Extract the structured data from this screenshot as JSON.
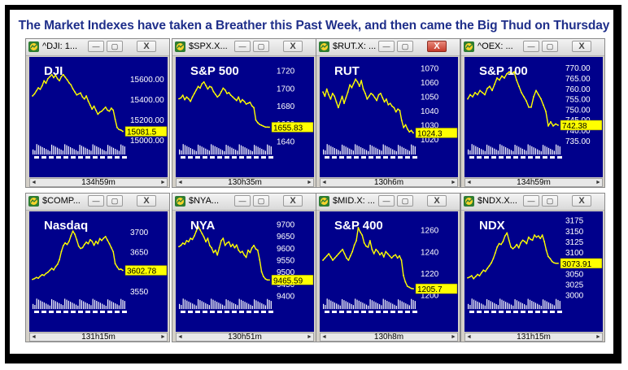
{
  "headline": "The Market Indexes have taken a Breather this Past Week, and then came the Big Thud on Thursday",
  "colors": {
    "headline": "#1f2f8a",
    "plot_bg": "#00008b",
    "price_line": "#ffff00",
    "label_box": "#ffff00",
    "axis_text": "#ffffff"
  },
  "window_buttons": {
    "minimize": "—",
    "restore": "▢",
    "close": "X"
  },
  "icons": {
    "app": "stock-chart-app-icon",
    "scroll_left": "left-arrow-icon",
    "scroll_right": "right-arrow-icon"
  },
  "windows": [
    {
      "title": "^DJI: 1...",
      "label": "DJI",
      "interval": "134h59m",
      "last_price": "15081.5",
      "close_active": false,
      "chart_data": {
        "type": "line",
        "ylim": [
          14950,
          15750
        ],
        "yticks": [
          "15600.00",
          "15400.00",
          "15200.00",
          "15000.00"
        ],
        "ytick_values": [
          15600,
          15400,
          15200,
          15000
        ],
        "values": [
          15430,
          15450,
          15480,
          15510,
          15495,
          15530,
          15580,
          15555,
          15600,
          15620,
          15640,
          15610,
          15635,
          15600,
          15580,
          15620,
          15640,
          15615,
          15590,
          15560,
          15540,
          15500,
          15470,
          15440,
          15450,
          15460,
          15420,
          15400,
          15430,
          15380,
          15340,
          15300,
          15330,
          15290,
          15250,
          15270,
          15280,
          15300,
          15320,
          15290,
          15280,
          15310,
          15290,
          15200,
          15120,
          15100,
          15095,
          15081.5
        ]
      }
    },
    {
      "title": "$SPX.X...",
      "label": "S&P 500",
      "interval": "130h35m",
      "last_price": "1655.83",
      "close_active": false,
      "chart_data": {
        "type": "line",
        "ylim": [
          1636,
          1728
        ],
        "yticks": [
          "1720",
          "1700",
          "1680",
          "1660",
          "1640"
        ],
        "ytick_values": [
          1720,
          1700,
          1680,
          1660,
          1640
        ],
        "values": [
          1688,
          1689,
          1692,
          1687,
          1690,
          1688,
          1685,
          1690,
          1694,
          1698,
          1702,
          1700,
          1705,
          1707,
          1703,
          1699,
          1702,
          1701,
          1696,
          1693,
          1690,
          1692,
          1696,
          1700,
          1698,
          1694,
          1695,
          1692,
          1690,
          1688,
          1686,
          1690,
          1684,
          1687,
          1685,
          1682,
          1683,
          1684,
          1680,
          1678,
          1664,
          1661,
          1659,
          1658,
          1657,
          1656,
          1656,
          1655.83
        ]
      }
    },
    {
      "title": "$RUT.X: ...",
      "label": "RUT",
      "interval": "130h6m",
      "last_price": "1024.3",
      "close_active": true,
      "chart_data": {
        "type": "line",
        "ylim": [
          1016,
          1073
        ],
        "yticks": [
          "1070",
          "1060",
          "1050",
          "1040",
          "1030",
          "1020"
        ],
        "ytick_values": [
          1070,
          1060,
          1050,
          1040,
          1030,
          1020
        ],
        "values": [
          1053,
          1050,
          1055,
          1051,
          1048,
          1052,
          1050,
          1046,
          1042,
          1046,
          1050,
          1045,
          1049,
          1053,
          1058,
          1056,
          1059,
          1062,
          1060,
          1057,
          1061,
          1055,
          1052,
          1048,
          1050,
          1052,
          1051,
          1049,
          1047,
          1051,
          1052,
          1049,
          1046,
          1048,
          1044,
          1045,
          1043,
          1042,
          1039,
          1041,
          1040,
          1033,
          1028,
          1030,
          1027,
          1025,
          1026,
          1024.3
        ]
      }
    },
    {
      "title": "^OEX: ...",
      "label": "S&P 100",
      "interval": "134h59m",
      "last_price": "742.38",
      "close_active": false,
      "chart_data": {
        "type": "line",
        "ylim": [
          733,
          772
        ],
        "yticks": [
          "770.00",
          "765.00",
          "760.00",
          "755.00",
          "750.00",
          "745.00",
          "740.00",
          "735.00"
        ],
        "ytick_values": [
          770,
          765,
          760,
          755,
          750,
          745,
          740,
          735
        ],
        "values": [
          755,
          757,
          756,
          758,
          757,
          759,
          758,
          757,
          760,
          761,
          759,
          762,
          765,
          764,
          766,
          765,
          767,
          768,
          767,
          768,
          764,
          761,
          758,
          756,
          754,
          751,
          751,
          756,
          759,
          757,
          755,
          752,
          749,
          742,
          744,
          742,
          743,
          742.38
        ]
      }
    },
    {
      "title": "$COMP...",
      "label": "Nasdaq",
      "interval": "131h15m",
      "last_price": "3602.78",
      "close_active": false,
      "chart_data": {
        "type": "line",
        "ylim": [
          3530,
          3735
        ],
        "yticks": [
          "3700",
          "3650",
          "3600",
          "3550"
        ],
        "ytick_values": [
          3700,
          3650,
          3600,
          3550
        ],
        "values": [
          3580,
          3582,
          3585,
          3583,
          3588,
          3592,
          3590,
          3595,
          3598,
          3603,
          3608,
          3604,
          3612,
          3618,
          3630,
          3650,
          3665,
          3672,
          3668,
          3676,
          3690,
          3702,
          3694,
          3680,
          3664,
          3658,
          3660,
          3668,
          3674,
          3670,
          3680,
          3676,
          3666,
          3676,
          3670,
          3683,
          3678,
          3684,
          3688,
          3679,
          3670,
          3660,
          3650,
          3620,
          3612,
          3605,
          3606,
          3602.78
        ]
      }
    },
    {
      "title": "$NYA...",
      "label": "NYA",
      "interval": "130h51m",
      "last_price": "9465.59",
      "close_active": false,
      "chart_data": {
        "type": "line",
        "ylim": [
          9385,
          9725
        ],
        "yticks": [
          "9700",
          "9650",
          "9600",
          "9550",
          "9500",
          "9450",
          "9400"
        ],
        "ytick_values": [
          9700,
          9650,
          9600,
          9550,
          9500,
          9450,
          9400
        ],
        "values": [
          9605,
          9610,
          9620,
          9615,
          9630,
          9625,
          9640,
          9635,
          9650,
          9670,
          9690,
          9675,
          9660,
          9645,
          9625,
          9640,
          9610,
          9600,
          9580,
          9590,
          9570,
          9600,
          9630,
          9640,
          9610,
          9620,
          9625,
          9605,
          9615,
          9600,
          9612,
          9590,
          9580,
          9585,
          9570,
          9560,
          9590,
          9580,
          9600,
          9610,
          9595,
          9590,
          9550,
          9500,
          9480,
          9470,
          9466,
          9465.59
        ]
      }
    },
    {
      "title": "$MID.X: ...",
      "label": "S&P 400",
      "interval": "130h8m",
      "last_price": "1205.7",
      "close_active": false,
      "chart_data": {
        "type": "line",
        "ylim": [
          1196,
          1271
        ],
        "yticks": [
          "1260",
          "1240",
          "1220",
          "1200"
        ],
        "ytick_values": [
          1260,
          1240,
          1220,
          1200
        ],
        "values": [
          1232,
          1234,
          1236,
          1238,
          1235,
          1232,
          1234,
          1236,
          1238,
          1240,
          1242,
          1238,
          1234,
          1232,
          1236,
          1240,
          1246,
          1250,
          1262,
          1258,
          1255,
          1248,
          1245,
          1244,
          1250,
          1242,
          1238,
          1242,
          1240,
          1237,
          1239,
          1235,
          1240,
          1238,
          1236,
          1234,
          1236,
          1237,
          1234,
          1236,
          1232,
          1218,
          1212,
          1208,
          1207,
          1206,
          1205.7
        ]
      }
    },
    {
      "title": "$NDX.X...",
      "label": "NDX",
      "interval": "131h15m",
      "last_price": "3073.91",
      "close_active": false,
      "chart_data": {
        "type": "line",
        "ylim": [
          2990,
          3180
        ],
        "yticks": [
          "3175",
          "3150",
          "3125",
          "3100",
          "3075",
          "3050",
          "3025",
          "3000"
        ],
        "ytick_values": [
          3175,
          3150,
          3125,
          3100,
          3075,
          3050,
          3025,
          3000
        ],
        "values": [
          3040,
          3042,
          3045,
          3038,
          3043,
          3048,
          3045,
          3052,
          3058,
          3055,
          3062,
          3068,
          3075,
          3085,
          3098,
          3112,
          3120,
          3118,
          3125,
          3138,
          3145,
          3128,
          3112,
          3108,
          3112,
          3118,
          3110,
          3122,
          3128,
          3125,
          3120,
          3135,
          3130,
          3128,
          3140,
          3135,
          3138,
          3132,
          3140,
          3125,
          3105,
          3090,
          3085,
          3078,
          3075,
          3074,
          3073.91
        ]
      }
    }
  ]
}
